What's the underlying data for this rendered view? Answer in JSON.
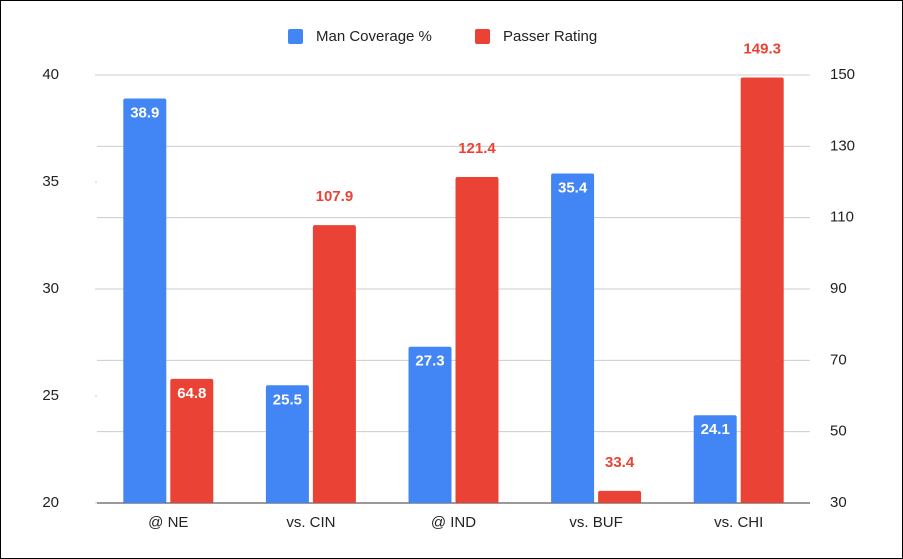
{
  "chart_data": {
    "type": "bar",
    "categories": [
      "@ NE",
      "vs. CIN",
      "@ IND",
      "vs. BUF",
      "vs. CHI"
    ],
    "series": [
      {
        "name": "Man Coverage %",
        "color": "#4285f4",
        "values": [
          38.9,
          25.5,
          27.3,
          35.4,
          24.1
        ]
      },
      {
        "name": "Passer Rating",
        "color": "#ea4335",
        "values": [
          64.8,
          107.9,
          121.4,
          33.4,
          149.3
        ],
        "axis": "y2"
      }
    ],
    "ylim": [
      20,
      40
    ],
    "yticks": [
      20,
      25,
      30,
      35,
      40
    ],
    "y2lim": [
      30,
      150
    ],
    "y2ticks": [
      30,
      50,
      70,
      90,
      110,
      130,
      150
    ],
    "grid": true,
    "legend": "top"
  }
}
